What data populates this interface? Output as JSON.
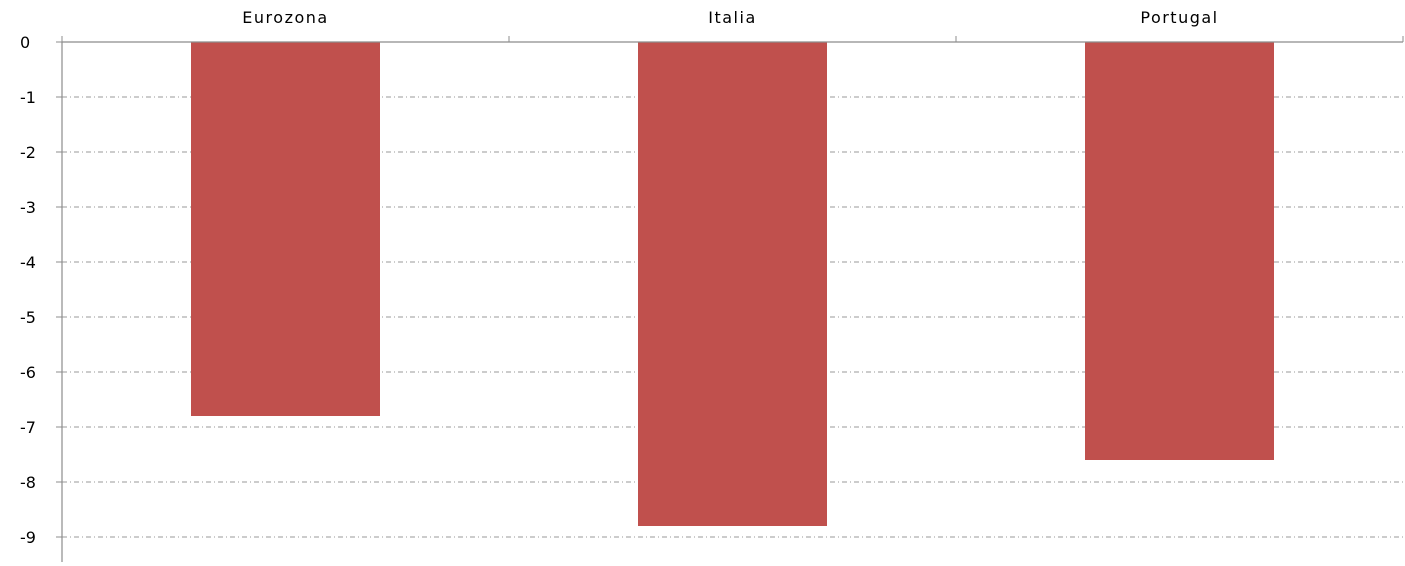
{
  "chart_data": {
    "type": "bar",
    "categories": [
      "Eurozona",
      "Italia",
      "Portugal"
    ],
    "values": [
      -6.8,
      -8.8,
      -7.6
    ],
    "ylim": [
      -9,
      0
    ],
    "yticks": [
      0,
      -1,
      -2,
      -3,
      -4,
      -5,
      -6,
      -7,
      -8,
      -9
    ],
    "title": "",
    "xlabel": "",
    "ylabel": "",
    "grid": true,
    "category_axis_position": "top",
    "bar_color": "#c0504d",
    "grid_color": "#9a9a9a",
    "axis_color": "#8c8c8c"
  }
}
